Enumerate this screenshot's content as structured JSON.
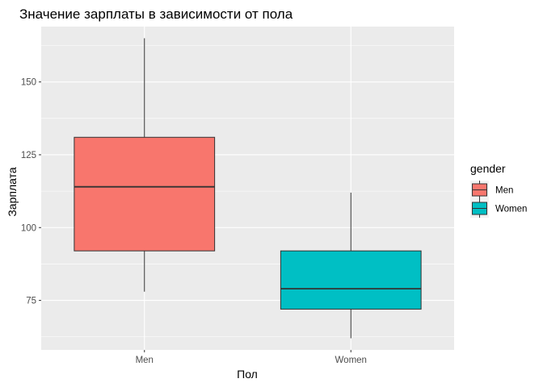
{
  "chart_data": {
    "type": "boxplot",
    "title": "Значение зарплаты в зависимости от пола",
    "xlabel": "Пол",
    "ylabel": "Зарплата",
    "categories": [
      "Men",
      "Women"
    ],
    "series": [
      {
        "name": "Men",
        "color": "#F8766D",
        "min": 78,
        "q1": 92,
        "median": 114,
        "q3": 131,
        "max": 165
      },
      {
        "name": "Women",
        "color": "#00BFC4",
        "min": 62,
        "q1": 72,
        "median": 79,
        "q3": 92,
        "max": 112
      }
    ],
    "yticks": [
      75,
      100,
      125,
      150
    ],
    "ylim": [
      58,
      169
    ],
    "grid": true,
    "background": "#EBEBEB",
    "legend": {
      "title": "gender",
      "placement": "right",
      "entries": [
        "Men",
        "Women"
      ]
    }
  }
}
